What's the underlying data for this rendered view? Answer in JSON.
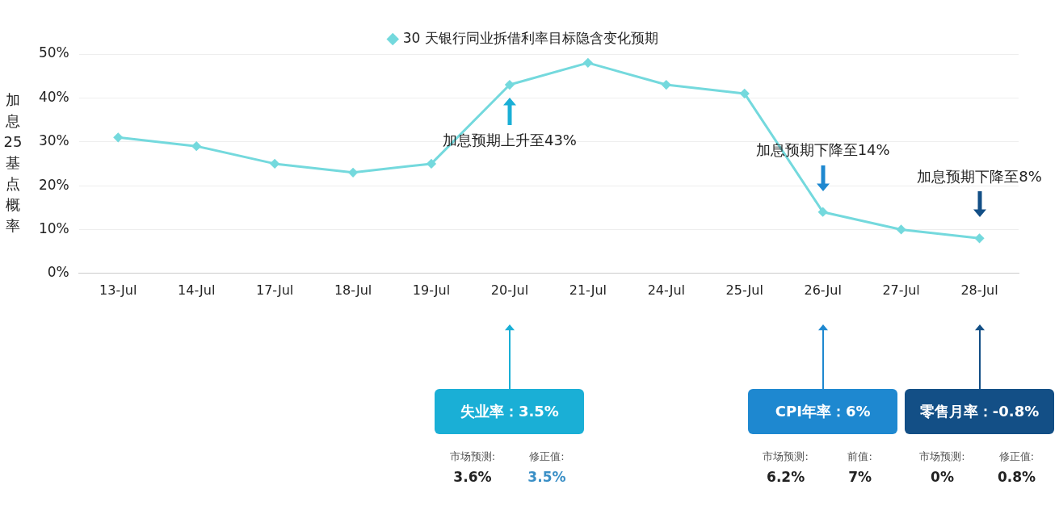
{
  "chart_data": {
    "type": "line",
    "ylabel": "加息25基点概率",
    "categories": [
      "13-Jul",
      "14-Jul",
      "17-Jul",
      "18-Jul",
      "19-Jul",
      "20-Jul",
      "21-Jul",
      "24-Jul",
      "25-Jul",
      "26-Jul",
      "27-Jul",
      "28-Jul"
    ],
    "series": [
      {
        "name": "30 天银行同业拆借利率目标隐含变化预期",
        "color": "#74d9dd",
        "values": [
          31,
          29,
          25,
          23,
          25,
          43,
          48,
          43,
          41,
          14,
          10,
          8
        ]
      }
    ],
    "ylim": [
      0,
      50
    ],
    "yticks": [
      {
        "value": 0,
        "label": "0%"
      },
      {
        "value": 10,
        "label": "10%"
      },
      {
        "value": 20,
        "label": "20%"
      },
      {
        "value": 30,
        "label": "30%"
      },
      {
        "value": 40,
        "label": "40%"
      },
      {
        "value": 50,
        "label": "50%"
      }
    ],
    "grid": "y",
    "legend": "top",
    "marker": "diamond",
    "line_style": "solid",
    "annotations": [
      "加息预期上升至43%",
      "加息预期下降至14%",
      "加息预期下降至8%",
      "失业率：3.5%",
      "市场预测:",
      "3.6%",
      "修正值:",
      "3.5%",
      "CPI年率：6%",
      "市场预测:",
      "6.2%",
      "前值:",
      "7%",
      "零售月率：-0.8%",
      "市场预测:",
      "0%",
      "修正值:",
      "0.8%"
    ]
  }
}
